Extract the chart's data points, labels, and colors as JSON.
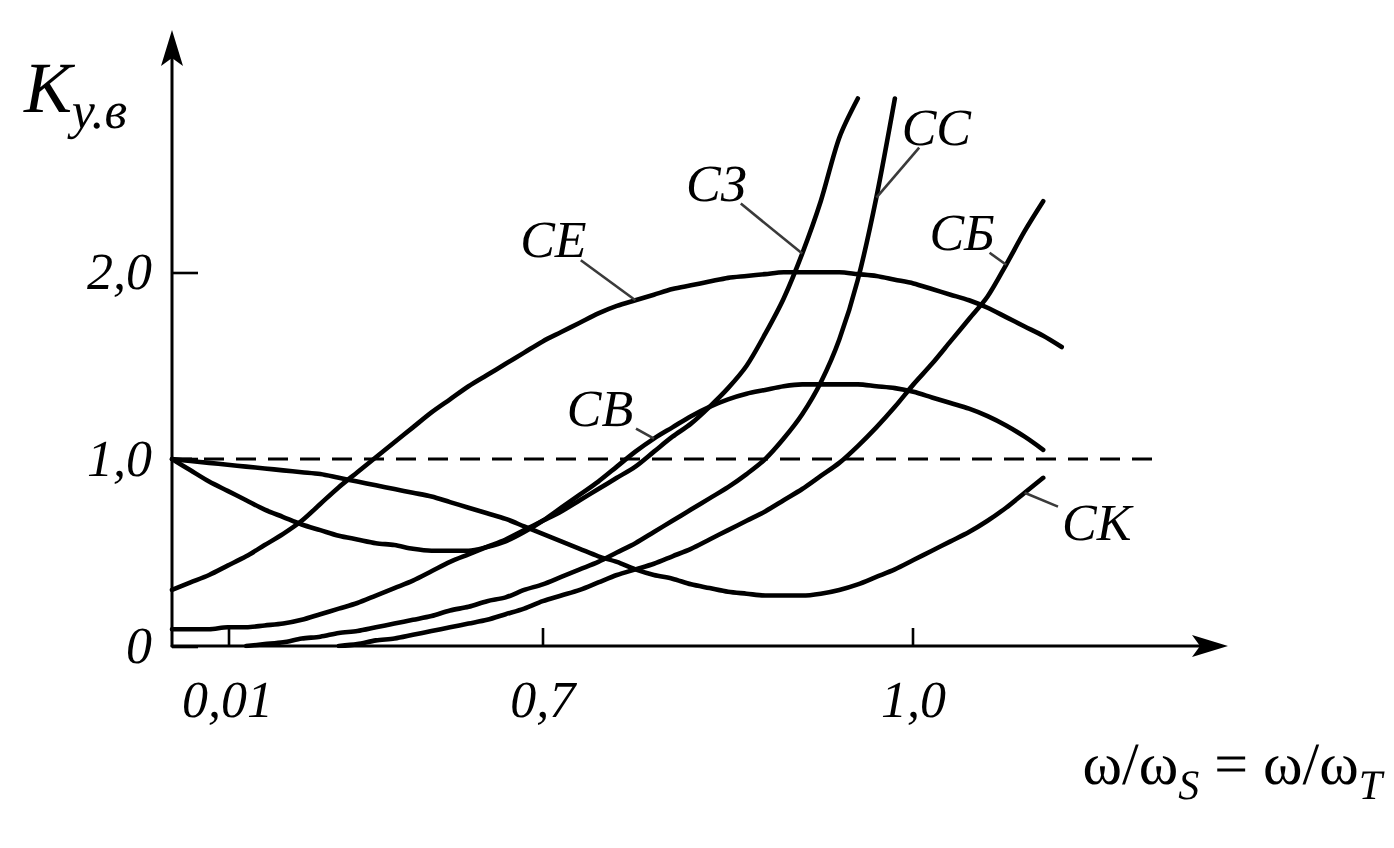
{
  "chart_data": {
    "type": "line",
    "xlabel": "ω/ω$_{S}$ = ω/ω$_{T}$",
    "ylabel": "К$_{у.в}$",
    "categories": [
      null,
      null,
      null,
      "0,01",
      null,
      null,
      null,
      null,
      null,
      null,
      null,
      null,
      null,
      null,
      null,
      null,
      null,
      null,
      null,
      null,
      "0,7",
      null,
      null,
      null,
      null,
      null,
      null,
      null,
      null,
      null,
      null,
      null,
      null,
      null,
      null,
      null,
      null,
      null,
      null,
      null,
      "1,0",
      null,
      null,
      null,
      null,
      null,
      null,
      null,
      null,
      null,
      null,
      null,
      null,
      null,
      null,
      null,
      null
    ],
    "ylim": [
      0,
      3.2
    ],
    "yticks": [
      0,
      {
        "value": 1,
        "label": "1,0"
      },
      {
        "value": 2,
        "label": "2,0"
      }
    ],
    "ref_lines": [
      {
        "axis": "y",
        "value": 1,
        "line_style": "dashed"
      }
    ],
    "series": [
      {
        "name": "СЗ",
        "color": "#000000",
        "values": [
          0.09,
          0.09,
          0.09,
          0.1,
          0.1,
          0.11,
          0.12,
          0.14,
          0.17,
          0.2,
          0.23,
          0.27,
          0.31,
          0.35,
          0.4,
          0.45,
          0.49,
          0.53,
          0.57,
          0.62,
          0.67,
          0.72,
          0.78,
          0.84,
          0.9,
          0.96,
          1.04,
          1.12,
          1.19,
          1.28,
          1.38,
          1.5,
          1.67,
          1.86,
          2.1,
          2.38,
          2.72,
          2.93,
          null,
          null,
          null,
          null,
          null,
          null,
          null,
          null,
          null,
          null,
          null,
          null,
          null,
          null,
          null,
          null,
          null,
          null,
          null
        ]
      },
      {
        "name": "СС",
        "color": "#000000",
        "values": [
          null,
          null,
          null,
          null,
          0.0,
          0.01,
          0.02,
          0.04,
          0.05,
          0.07,
          0.08,
          0.1,
          0.12,
          0.14,
          0.16,
          0.19,
          0.21,
          0.24,
          0.26,
          0.3,
          0.33,
          0.37,
          0.41,
          0.45,
          0.5,
          0.55,
          0.61,
          0.67,
          0.73,
          0.79,
          0.85,
          0.92,
          1.0,
          1.11,
          1.24,
          1.41,
          1.64,
          1.96,
          2.4,
          2.93,
          null,
          null,
          null,
          null,
          null,
          null,
          null,
          null,
          null,
          null,
          null,
          null,
          null,
          null,
          null,
          null,
          null
        ]
      },
      {
        "name": "СЕ",
        "color": "#000000",
        "values": [
          0.3,
          0.34,
          0.38,
          0.43,
          0.48,
          0.54,
          0.6,
          0.67,
          0.76,
          0.85,
          0.93,
          1.01,
          1.09,
          1.17,
          1.25,
          1.32,
          1.39,
          1.45,
          1.51,
          1.57,
          1.63,
          1.68,
          1.73,
          1.78,
          1.82,
          1.85,
          1.88,
          1.91,
          1.93,
          1.95,
          1.97,
          1.98,
          1.99,
          2.0,
          2.0,
          2.0,
          2.0,
          1.99,
          1.98,
          1.96,
          1.94,
          1.91,
          1.88,
          1.85,
          1.81,
          1.76,
          1.71,
          1.66,
          1.6,
          null,
          null,
          null,
          null,
          null,
          null,
          null,
          null
        ]
      },
      {
        "name": "СБ",
        "color": "#000000",
        "values": [
          null,
          null,
          null,
          null,
          null,
          null,
          null,
          null,
          null,
          0.0,
          0.01,
          0.03,
          0.04,
          0.06,
          0.08,
          0.1,
          0.12,
          0.14,
          0.17,
          0.2,
          0.24,
          0.27,
          0.3,
          0.34,
          0.38,
          0.41,
          0.44,
          0.48,
          0.52,
          0.57,
          0.62,
          0.67,
          0.72,
          0.78,
          0.84,
          0.91,
          0.98,
          1.07,
          1.17,
          1.28,
          1.4,
          1.51,
          1.63,
          1.75,
          1.87,
          2.04,
          2.22,
          2.38,
          null,
          null,
          null,
          null,
          null,
          null,
          null,
          null,
          null
        ]
      },
      {
        "name": "СВ",
        "color": "#000000",
        "values": [
          1.0,
          0.94,
          0.88,
          0.83,
          0.78,
          0.73,
          0.69,
          0.65,
          0.62,
          0.59,
          0.57,
          0.55,
          0.54,
          0.52,
          0.51,
          0.51,
          0.51,
          0.53,
          0.56,
          0.61,
          0.67,
          0.74,
          0.81,
          0.88,
          0.96,
          1.04,
          1.11,
          1.17,
          1.23,
          1.28,
          1.32,
          1.35,
          1.37,
          1.39,
          1.4,
          1.4,
          1.4,
          1.4,
          1.39,
          1.38,
          1.36,
          1.33,
          1.3,
          1.27,
          1.23,
          1.18,
          1.12,
          1.05,
          null,
          null,
          null,
          null,
          null,
          null,
          null,
          null,
          null
        ]
      },
      {
        "name": "СК",
        "color": "#000000",
        "values": [
          1.0,
          0.99,
          0.98,
          0.97,
          0.96,
          0.95,
          0.94,
          0.93,
          0.92,
          0.9,
          0.88,
          0.86,
          0.84,
          0.82,
          0.8,
          0.77,
          0.74,
          0.71,
          0.68,
          0.64,
          0.6,
          0.56,
          0.52,
          0.48,
          0.45,
          0.41,
          0.38,
          0.36,
          0.33,
          0.31,
          0.29,
          0.28,
          0.27,
          0.27,
          0.27,
          0.28,
          0.3,
          0.33,
          0.37,
          0.41,
          0.46,
          0.51,
          0.56,
          0.61,
          0.67,
          0.74,
          0.82,
          0.9,
          null,
          null,
          null,
          null,
          null,
          null,
          null,
          null,
          null
        ]
      }
    ]
  }
}
